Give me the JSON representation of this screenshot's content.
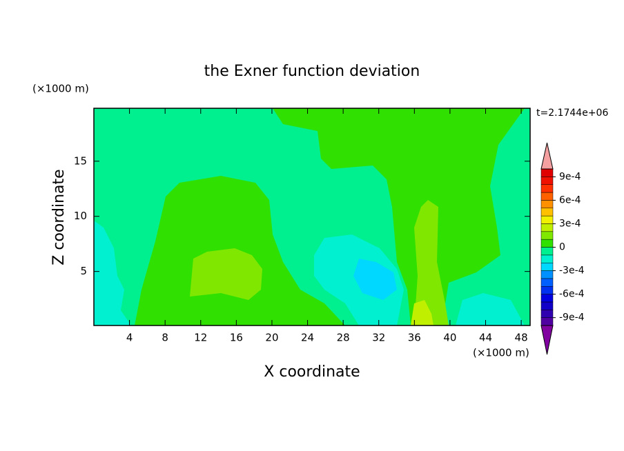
{
  "chart_data": {
    "type": "contour",
    "title": "the Exner function deviation",
    "xlabel": "X coordinate",
    "ylabel": "Z coordinate",
    "xunit": "(×1000 m)",
    "yunit": "(×1000 m)",
    "annotation": "t=2.1744e+06",
    "xlim": [
      0,
      49
    ],
    "ylim": [
      0.1,
      19.8
    ],
    "xticks": [
      4,
      8,
      12,
      16,
      20,
      24,
      28,
      32,
      36,
      40,
      44,
      48
    ],
    "yticks": [
      5,
      10,
      15
    ],
    "colorbar": {
      "levels": [
        -0.001,
        -0.0009,
        -0.0008,
        -0.0007,
        -0.0006,
        -0.0005,
        -0.0004,
        -0.0003,
        -0.0002,
        -0.0001,
        0,
        0.0001,
        0.0002,
        0.0003,
        0.0004,
        0.0005,
        0.0006,
        0.0007,
        0.0008,
        0.0009,
        0.001
      ],
      "colors": [
        "#5000a0",
        "#3000b0",
        "#1000c8",
        "#0000e0",
        "#0030f0",
        "#0060ff",
        "#0090ff",
        "#00d8ff",
        "#00f0d0",
        "#00f090",
        "#30e000",
        "#80e800",
        "#c0f000",
        "#f0f000",
        "#ffc000",
        "#ff9000",
        "#ff6000",
        "#ff3000",
        "#f01000",
        "#e00000"
      ],
      "over_color": "#f4a0a0",
      "under_color": "#8000a0",
      "ticks": [
        {
          "value": -0.0009,
          "label": "-9e-4"
        },
        {
          "value": -0.0006,
          "label": "-6e-4"
        },
        {
          "value": -0.0003,
          "label": "-3e-4"
        },
        0,
        {
          "value": 0.0003,
          "label": "3e-4"
        },
        {
          "value": 0.0006,
          "label": "6e-4"
        },
        {
          "value": 0.0009,
          "label": "9e-4"
        }
      ]
    }
  }
}
